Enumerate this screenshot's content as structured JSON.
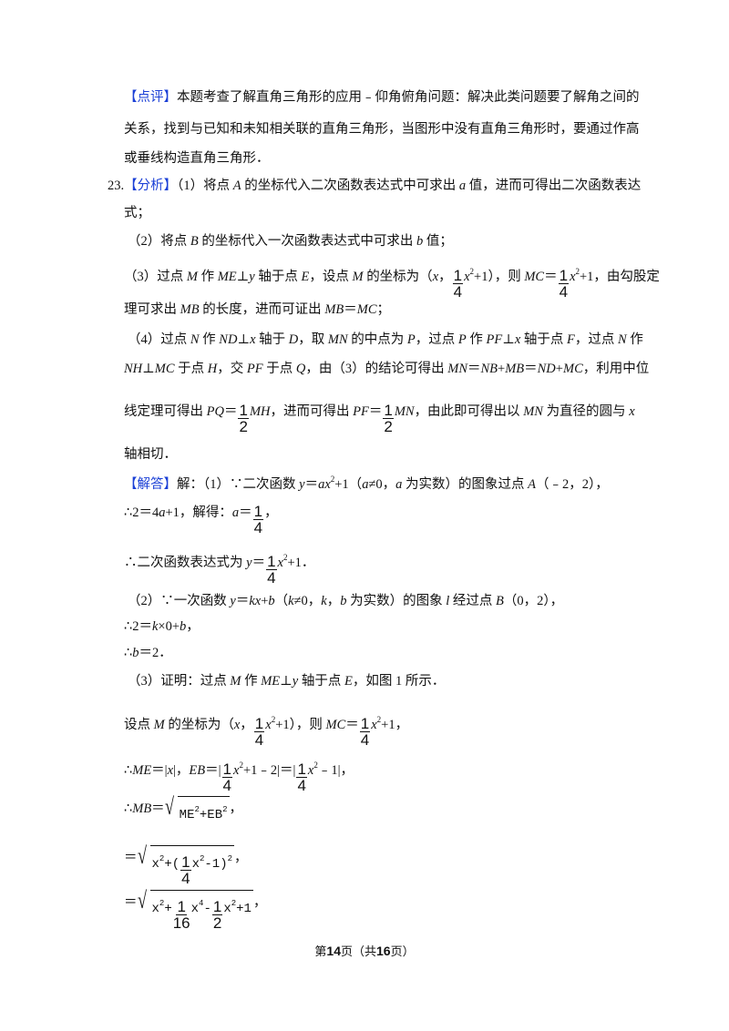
{
  "lines": [
    {
      "seg": [
        {
          "b": "【点评】"
        },
        {
          "t": "本题考查了解直角三角形的应用﹣仰角俯角问题：解决此类问题要了解角之间的"
        }
      ]
    },
    {
      "seg": [
        {
          "t": "关系，找到与已知和未知相关联的直角三角形，当图形中没有直角三角形时，要通过作高"
        }
      ]
    },
    {
      "seg": [
        {
          "t": "或垂线构造直角三角形．"
        }
      ]
    },
    {
      "seg": [
        {
          "t": "23."
        },
        {
          "b": "【分析】"
        },
        {
          "t": "（1）将点 "
        },
        {
          "i": "A"
        },
        {
          "t": " 的坐标代入二次函数表达式中可求出 "
        },
        {
          "i": "a"
        },
        {
          "t": " 值，进而可得出二次函数表达"
        }
      ]
    },
    {
      "seg": [
        {
          "t": "式；"
        }
      ]
    },
    {
      "seg": [
        {
          "t": "（2）将点 "
        },
        {
          "i": "B"
        },
        {
          "t": " 的坐标代入一次函数表达式中可求出 "
        },
        {
          "i": "b"
        },
        {
          "t": " 值；"
        }
      ]
    },
    {
      "seg": [
        {
          "t": "（3）过点 "
        },
        {
          "i": "M"
        },
        {
          "t": " 作 "
        },
        {
          "i": "ME"
        },
        {
          "t": "⊥"
        },
        {
          "i": "y"
        },
        {
          "t": " 轴于点 "
        },
        {
          "i": "E"
        },
        {
          "t": "，设点 "
        },
        {
          "i": "M"
        },
        {
          "t": " 的坐标为（"
        },
        {
          "i": "x"
        },
        {
          "t": "，"
        },
        {
          "n": "1",
          "d": "4"
        },
        {
          "i": "x"
        },
        {
          "s": "2"
        },
        {
          "t": "+1），则 "
        },
        {
          "i": "MC"
        },
        {
          "t": "＝"
        },
        {
          "n": "1",
          "d": "4"
        },
        {
          "i": "x"
        },
        {
          "s": "2"
        },
        {
          "t": "+1，由勾股定"
        }
      ]
    },
    {
      "seg": [
        {
          "t": "理可求出 "
        },
        {
          "i": "MB"
        },
        {
          "t": " 的长度，进而可证出 "
        },
        {
          "i": "MB"
        },
        {
          "t": "＝"
        },
        {
          "i": "MC"
        },
        {
          "t": "；"
        }
      ]
    },
    {
      "seg": [
        {
          "t": "（4）过点 "
        },
        {
          "i": "N"
        },
        {
          "t": " 作 "
        },
        {
          "i": "ND"
        },
        {
          "t": "⊥"
        },
        {
          "i": "x"
        },
        {
          "t": " 轴于 "
        },
        {
          "i": "D"
        },
        {
          "t": "，取 "
        },
        {
          "i": "MN"
        },
        {
          "t": " 的中点为 "
        },
        {
          "i": "P"
        },
        {
          "t": "，过点 "
        },
        {
          "i": "P"
        },
        {
          "t": " 作 "
        },
        {
          "i": "PF"
        },
        {
          "t": "⊥"
        },
        {
          "i": "x"
        },
        {
          "t": " 轴于点 "
        },
        {
          "i": "F"
        },
        {
          "t": "，过点 "
        },
        {
          "i": "N"
        },
        {
          "t": " 作"
        }
      ]
    },
    {
      "seg": [
        {
          "i": "NH"
        },
        {
          "t": "⊥"
        },
        {
          "i": "MC"
        },
        {
          "t": " 于点 "
        },
        {
          "i": "H"
        },
        {
          "t": "，交 "
        },
        {
          "i": "PF"
        },
        {
          "t": " 于点 "
        },
        {
          "i": "Q"
        },
        {
          "t": "，由（3）的结论可得出 "
        },
        {
          "i": "MN"
        },
        {
          "t": "＝"
        },
        {
          "i": "NB"
        },
        {
          "t": "+"
        },
        {
          "i": "MB"
        },
        {
          "t": "＝"
        },
        {
          "i": "ND"
        },
        {
          "t": "+"
        },
        {
          "i": "MC"
        },
        {
          "t": "，利用中位"
        }
      ]
    },
    {
      "seg": [
        {
          "t": "线定理可得出 "
        },
        {
          "i": "PQ"
        },
        {
          "t": "＝"
        },
        {
          "n": "1",
          "d": "2"
        },
        {
          "i": "MH"
        },
        {
          "t": "，进而可得出 "
        },
        {
          "i": "PF"
        },
        {
          "t": "＝"
        },
        {
          "n": "1",
          "d": "2"
        },
        {
          "i": "MN"
        },
        {
          "t": "，由此即可得出以 "
        },
        {
          "i": "MN"
        },
        {
          "t": " 为直径的圆与 "
        },
        {
          "i": "x"
        }
      ]
    },
    {
      "seg": [
        {
          "t": "轴相切．"
        }
      ]
    },
    {
      "seg": [
        {
          "b": "【解答】"
        },
        {
          "t": "解：（1）∵二次函数 "
        },
        {
          "i": "y"
        },
        {
          "t": "＝"
        },
        {
          "i": "ax"
        },
        {
          "s": "2"
        },
        {
          "t": "+1（"
        },
        {
          "i": "a"
        },
        {
          "t": "≠0，"
        },
        {
          "i": "a"
        },
        {
          "t": " 为实数）的图象过点 "
        },
        {
          "i": "A"
        },
        {
          "t": "（﹣2，2），"
        }
      ]
    },
    {
      "seg": [
        {
          "t": "∴2＝4"
        },
        {
          "i": "a"
        },
        {
          "t": "+1，解得："
        },
        {
          "i": "a"
        },
        {
          "t": "＝"
        },
        {
          "n": "1",
          "d": "4"
        },
        {
          "t": "，"
        }
      ]
    },
    {
      "seg": [
        {
          "t": "∴二次函数表达式为 "
        },
        {
          "i": "y"
        },
        {
          "t": "＝"
        },
        {
          "n": "1",
          "d": "4"
        },
        {
          "i": "x"
        },
        {
          "s": "2"
        },
        {
          "t": "+1．"
        }
      ]
    },
    {
      "seg": [
        {
          "t": "（2）∵一次函数 "
        },
        {
          "i": "y"
        },
        {
          "t": "＝"
        },
        {
          "i": "kx"
        },
        {
          "t": "+"
        },
        {
          "i": "b"
        },
        {
          "t": "（"
        },
        {
          "i": "k"
        },
        {
          "t": "≠0，"
        },
        {
          "i": "k"
        },
        {
          "t": "，"
        },
        {
          "i": "b"
        },
        {
          "t": " 为实数）的图象 "
        },
        {
          "i": "l"
        },
        {
          "t": " 经过点 "
        },
        {
          "i": "B"
        },
        {
          "t": "（0，2），"
        }
      ]
    },
    {
      "seg": [
        {
          "t": "∴2＝"
        },
        {
          "i": "k"
        },
        {
          "t": "×0+"
        },
        {
          "i": "b"
        },
        {
          "t": "，"
        }
      ]
    },
    {
      "seg": [
        {
          "t": "∴"
        },
        {
          "i": "b"
        },
        {
          "t": "＝2．"
        }
      ]
    },
    {
      "seg": [
        {
          "t": "（3）证明：过点 "
        },
        {
          "i": "M"
        },
        {
          "t": " 作 "
        },
        {
          "i": "ME"
        },
        {
          "t": "⊥"
        },
        {
          "i": "y"
        },
        {
          "t": " 轴于点 "
        },
        {
          "i": "E"
        },
        {
          "t": "，如图 1 所示．"
        }
      ]
    },
    {
      "seg": [
        {
          "t": "设点 "
        },
        {
          "i": "M"
        },
        {
          "t": " 的坐标为（"
        },
        {
          "i": "x"
        },
        {
          "t": "，"
        },
        {
          "n": "1",
          "d": "4"
        },
        {
          "i": "x"
        },
        {
          "s": "2"
        },
        {
          "t": "+1），则 "
        },
        {
          "i": "MC"
        },
        {
          "t": "＝"
        },
        {
          "n": "1",
          "d": "4"
        },
        {
          "i": "x"
        },
        {
          "s": "2"
        },
        {
          "t": "+1，"
        }
      ]
    },
    {
      "seg": [
        {
          "t": "∴"
        },
        {
          "i": "ME"
        },
        {
          "t": "＝|"
        },
        {
          "i": "x"
        },
        {
          "t": "|，"
        },
        {
          "i": "EB"
        },
        {
          "t": "＝|"
        },
        {
          "n": "1",
          "d": "4"
        },
        {
          "i": "x"
        },
        {
          "s": "2"
        },
        {
          "t": "+1﹣2|＝|"
        },
        {
          "n": "1",
          "d": "4"
        },
        {
          "i": "x"
        },
        {
          "s": "2"
        },
        {
          "t": "﹣1|，"
        }
      ]
    },
    {
      "seg": [
        {
          "t": "∴"
        },
        {
          "i": "MB"
        },
        {
          "t": "＝"
        },
        {
          "sqrt": [
            {
              "t": "ME"
            },
            {
              "s": "2"
            },
            {
              "t": "+EB"
            },
            {
              "s": "2"
            }
          ]
        },
        {
          "t": "，"
        }
      ]
    },
    {
      "seg": [
        {
          "t": "＝"
        },
        {
          "sqrt": [
            {
              "t": "x"
            },
            {
              "s": "2"
            },
            {
              "t": "+("
            },
            {
              "n": "1",
              "d": "4"
            },
            {
              "t": "x"
            },
            {
              "s": "2"
            },
            {
              "t": "-1)"
            },
            {
              "s": "2"
            }
          ]
        },
        {
          "t": "，"
        }
      ]
    },
    {
      "seg": [
        {
          "t": "＝"
        },
        {
          "sqrt": [
            {
              "t": "x"
            },
            {
              "s": "2"
            },
            {
              "t": "+"
            },
            {
              "n": "1",
              "d": "16"
            },
            {
              "t": "x"
            },
            {
              "s": "4"
            },
            {
              "t": "-"
            },
            {
              "n": "1",
              "d": "2"
            },
            {
              "t": "x"
            },
            {
              "s": "2"
            },
            {
              "t": "+1"
            }
          ]
        },
        {
          "t": "，"
        }
      ]
    }
  ],
  "footer": {
    "pre": "第",
    "page": "14",
    "mid": "页（共",
    "total": "16",
    "post": "页）"
  },
  "colors": {
    "tag": "#1a3fd6",
    "text": "#111111"
  }
}
